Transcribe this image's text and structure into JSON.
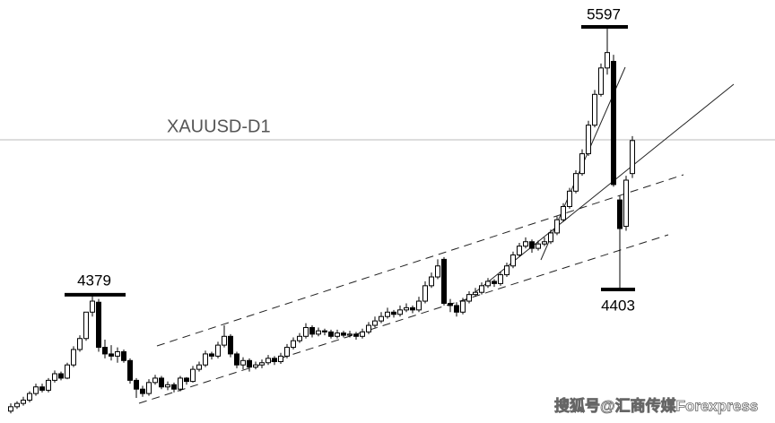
{
  "chart_data": {
    "type": "candlestick",
    "title": "XAUUSD-D1",
    "watermark": "搜狐号@汇商传媒Forexpress",
    "ylim": [
      3796,
      5719
    ],
    "annotations": [
      5597,
      4379,
      4403
    ],
    "ohlc": [
      [
        3850,
        3885,
        3840,
        3870
      ],
      [
        3870,
        3895,
        3860,
        3885
      ],
      [
        3885,
        3915,
        3875,
        3900
      ],
      [
        3900,
        3940,
        3890,
        3930
      ],
      [
        3930,
        3975,
        3920,
        3960
      ],
      [
        3960,
        3975,
        3935,
        3945
      ],
      [
        3945,
        4000,
        3935,
        3990
      ],
      [
        3990,
        4035,
        3980,
        4020
      ],
      [
        4020,
        4030,
        3990,
        4000
      ],
      [
        4000,
        4070,
        3995,
        4060
      ],
      [
        4060,
        4145,
        4050,
        4130
      ],
      [
        4130,
        4195,
        4120,
        4180
      ],
      [
        4180,
        4300,
        4170,
        4300
      ],
      [
        4300,
        4379,
        4280,
        4350
      ],
      [
        4345,
        4360,
        4120,
        4140
      ],
      [
        4140,
        4175,
        4090,
        4110
      ],
      [
        4110,
        4150,
        4080,
        4100
      ],
      [
        4100,
        4140,
        4070,
        4120
      ],
      [
        4120,
        4130,
        4070,
        4080
      ],
      [
        4080,
        4090,
        3975,
        3990
      ],
      [
        3990,
        4000,
        3910,
        3950
      ],
      [
        3950,
        3965,
        3915,
        3930
      ],
      [
        3930,
        3995,
        3920,
        3980
      ],
      [
        3980,
        4015,
        3970,
        4000
      ],
      [
        4000,
        4010,
        3950,
        3960
      ],
      [
        3960,
        3985,
        3945,
        3970
      ],
      [
        3970,
        3980,
        3935,
        3950
      ],
      [
        3950,
        4010,
        3940,
        4000
      ],
      [
        4000,
        4005,
        3970,
        3985
      ],
      [
        3985,
        4055,
        3980,
        4040
      ],
      [
        4040,
        4075,
        4030,
        4060
      ],
      [
        4060,
        4125,
        4050,
        4110
      ],
      [
        4110,
        4120,
        4085,
        4100
      ],
      [
        4100,
        4165,
        4090,
        4150
      ],
      [
        4150,
        4240,
        4140,
        4190
      ],
      [
        4190,
        4200,
        4095,
        4110
      ],
      [
        4110,
        4120,
        4045,
        4060
      ],
      [
        4060,
        4095,
        4040,
        4080
      ],
      [
        4080,
        4090,
        4030,
        4050
      ],
      [
        4050,
        4075,
        4040,
        4060
      ],
      [
        4060,
        4085,
        4045,
        4070
      ],
      [
        4070,
        4105,
        4060,
        4090
      ],
      [
        4090,
        4100,
        4060,
        4075
      ],
      [
        4075,
        4115,
        4065,
        4100
      ],
      [
        4100,
        4155,
        4090,
        4140
      ],
      [
        4140,
        4185,
        4130,
        4170
      ],
      [
        4170,
        4205,
        4160,
        4190
      ],
      [
        4190,
        4250,
        4180,
        4230
      ],
      [
        4230,
        4240,
        4185,
        4200
      ],
      [
        4200,
        4230,
        4190,
        4215
      ],
      [
        4215,
        4225,
        4195,
        4210
      ],
      [
        4210,
        4220,
        4180,
        4190
      ],
      [
        4190,
        4220,
        4180,
        4205
      ],
      [
        4205,
        4215,
        4185,
        4195
      ],
      [
        4195,
        4215,
        4185,
        4200
      ],
      [
        4200,
        4210,
        4175,
        4190
      ],
      [
        4190,
        4225,
        4180,
        4210
      ],
      [
        4210,
        4255,
        4200,
        4240
      ],
      [
        4240,
        4280,
        4230,
        4260
      ],
      [
        4260,
        4300,
        4250,
        4280
      ],
      [
        4280,
        4320,
        4270,
        4300
      ],
      [
        4300,
        4310,
        4275,
        4290
      ],
      [
        4290,
        4330,
        4280,
        4310
      ],
      [
        4310,
        4340,
        4300,
        4320
      ],
      [
        4320,
        4330,
        4295,
        4310
      ],
      [
        4310,
        4370,
        4300,
        4350
      ],
      [
        4350,
        4440,
        4340,
        4420
      ],
      [
        4420,
        4480,
        4410,
        4460
      ],
      [
        4460,
        4540,
        4450,
        4510
      ],
      [
        4540,
        4550,
        4330,
        4340
      ],
      [
        4340,
        4360,
        4300,
        4330
      ],
      [
        4330,
        4345,
        4280,
        4300
      ],
      [
        4300,
        4365,
        4290,
        4350
      ],
      [
        4350,
        4395,
        4340,
        4380
      ],
      [
        4380,
        4410,
        4370,
        4390
      ],
      [
        4390,
        4435,
        4380,
        4420
      ],
      [
        4420,
        4455,
        4410,
        4440
      ],
      [
        4440,
        4450,
        4415,
        4430
      ],
      [
        4430,
        4485,
        4420,
        4470
      ],
      [
        4470,
        4525,
        4460,
        4510
      ],
      [
        4510,
        4575,
        4500,
        4560
      ],
      [
        4560,
        4615,
        4550,
        4600
      ],
      [
        4600,
        4640,
        4590,
        4620
      ],
      [
        4620,
        4630,
        4570,
        4590
      ],
      [
        4590,
        4625,
        4580,
        4610
      ],
      [
        4610,
        4640,
        4600,
        4620
      ],
      [
        4620,
        4675,
        4610,
        4660
      ],
      [
        4660,
        4735,
        4650,
        4720
      ],
      [
        4720,
        4795,
        4710,
        4780
      ],
      [
        4780,
        4865,
        4770,
        4850
      ],
      [
        4850,
        4945,
        4840,
        4930
      ],
      [
        4930,
        5040,
        4920,
        5020
      ],
      [
        5020,
        5170,
        5010,
        5150
      ],
      [
        5150,
        5310,
        5140,
        5290
      ],
      [
        5290,
        5430,
        5280,
        5410
      ],
      [
        5410,
        5597,
        5380,
        5480
      ],
      [
        5440,
        5470,
        4870,
        4880
      ],
      [
        4810,
        4830,
        4403,
        4680
      ],
      [
        4690,
        4920,
        4670,
        4900
      ],
      [
        4930,
        5100,
        4910,
        5080
      ]
    ]
  }
}
